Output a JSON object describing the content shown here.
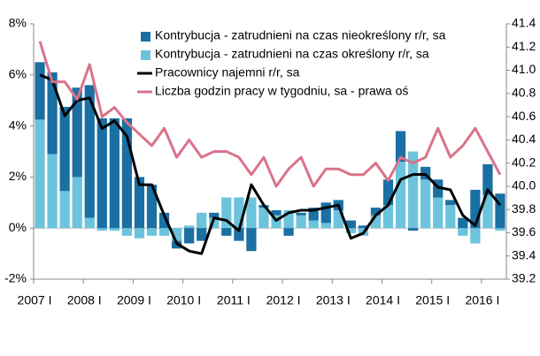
{
  "chart_data": {
    "type": "bar-line",
    "categories": [
      "2007 I",
      null,
      null,
      null,
      "2008 I",
      null,
      null,
      null,
      "2009 I",
      null,
      null,
      null,
      "2010 I",
      null,
      null,
      null,
      "2011 I",
      null,
      null,
      null,
      "2012 I",
      null,
      null,
      null,
      "2013 I",
      null,
      null,
      null,
      "2014 I",
      null,
      null,
      null,
      "2015 I",
      null,
      null,
      null,
      "2016 I",
      null
    ],
    "series": [
      {
        "name": "Kontrybucja - zatrudnieni na czas nieokreślony r/r, sa",
        "type": "bar",
        "color": "#1a6fa3",
        "values": [
          2.25,
          3.2,
          3.3,
          3.5,
          5.2,
          4.3,
          4.3,
          4.3,
          2.0,
          1.7,
          0.6,
          -0.3,
          -0.6,
          -0.5,
          0.2,
          -0.3,
          -0.5,
          -0.9,
          0.1,
          0.2,
          -0.3,
          0.1,
          0.5,
          0.8,
          0.4,
          0.3,
          0.1,
          0.3,
          1.0,
          1.2,
          -0.1,
          0.5,
          0.7,
          0.2,
          0.4,
          1.5,
          1.2,
          1.35
        ]
      },
      {
        "name": "Kontrybucja - zatrudnieni na czas określony r/r, sa",
        "type": "bar",
        "color": "#6cc3dc",
        "values": [
          4.25,
          2.9,
          1.45,
          2.0,
          0.4,
          -0.1,
          -0.1,
          -0.3,
          -0.4,
          -0.3,
          -0.3,
          -0.5,
          0.1,
          0.6,
          0.4,
          1.2,
          1.2,
          1.2,
          0.8,
          0.5,
          0.7,
          0.5,
          0.3,
          0.2,
          0.7,
          -0.2,
          -0.3,
          0.5,
          0.9,
          2.6,
          3.0,
          1.9,
          1.2,
          0.9,
          -0.3,
          -0.6,
          1.3,
          -0.1
        ]
      },
      {
        "name": "Pracownicy najemni r/r, sa",
        "type": "line",
        "color": "#000000",
        "values": [
          6.0,
          5.8,
          4.4,
          5.0,
          5.1,
          3.9,
          4.2,
          3.6,
          1.7,
          1.7,
          0.5,
          -0.6,
          -0.9,
          -1.0,
          0.4,
          0.3,
          -0.1,
          1.7,
          0.9,
          0.3,
          0.6,
          0.7,
          0.7,
          0.8,
          0.9,
          -0.4,
          -0.2,
          0.5,
          0.9,
          1.9,
          2.1,
          2.1,
          1.6,
          1.5,
          0.5,
          0.1,
          1.5,
          0.9
        ]
      },
      {
        "name": "Liczba godzin pracy w tygodniu, sa - prawa oś",
        "type": "line",
        "axis": "y2",
        "color": "#d9738a",
        "values": [
          41.25,
          40.9,
          40.9,
          40.75,
          41.05,
          40.6,
          40.68,
          40.55,
          40.45,
          40.35,
          40.5,
          40.25,
          40.4,
          40.25,
          40.3,
          40.3,
          40.25,
          40.1,
          40.25,
          40.0,
          40.15,
          40.25,
          40.0,
          40.15,
          40.15,
          40.1,
          40.1,
          40.2,
          40.05,
          40.25,
          40.2,
          40.25,
          40.5,
          40.25,
          40.35,
          40.5,
          40.3,
          40.1
        ]
      }
    ],
    "ylim": [
      -2,
      8
    ],
    "yticks": [
      {
        "value": -2,
        "label": "-2%"
      },
      {
        "value": 0,
        "label": "0%"
      },
      {
        "value": 2,
        "label": "2%"
      },
      {
        "value": 4,
        "label": "4%"
      },
      {
        "value": 6,
        "label": "6%"
      },
      {
        "value": 8,
        "label": "8%"
      }
    ],
    "y2lim": [
      39.2,
      41.4
    ],
    "y2ticks": [
      39.2,
      39.4,
      39.6,
      39.8,
      {
        "value": 40,
        "label": "40.0"
      },
      40.2,
      40.4,
      40.6,
      40.8,
      {
        "value": 41,
        "label": "41.0"
      },
      41.2,
      41.4
    ]
  }
}
